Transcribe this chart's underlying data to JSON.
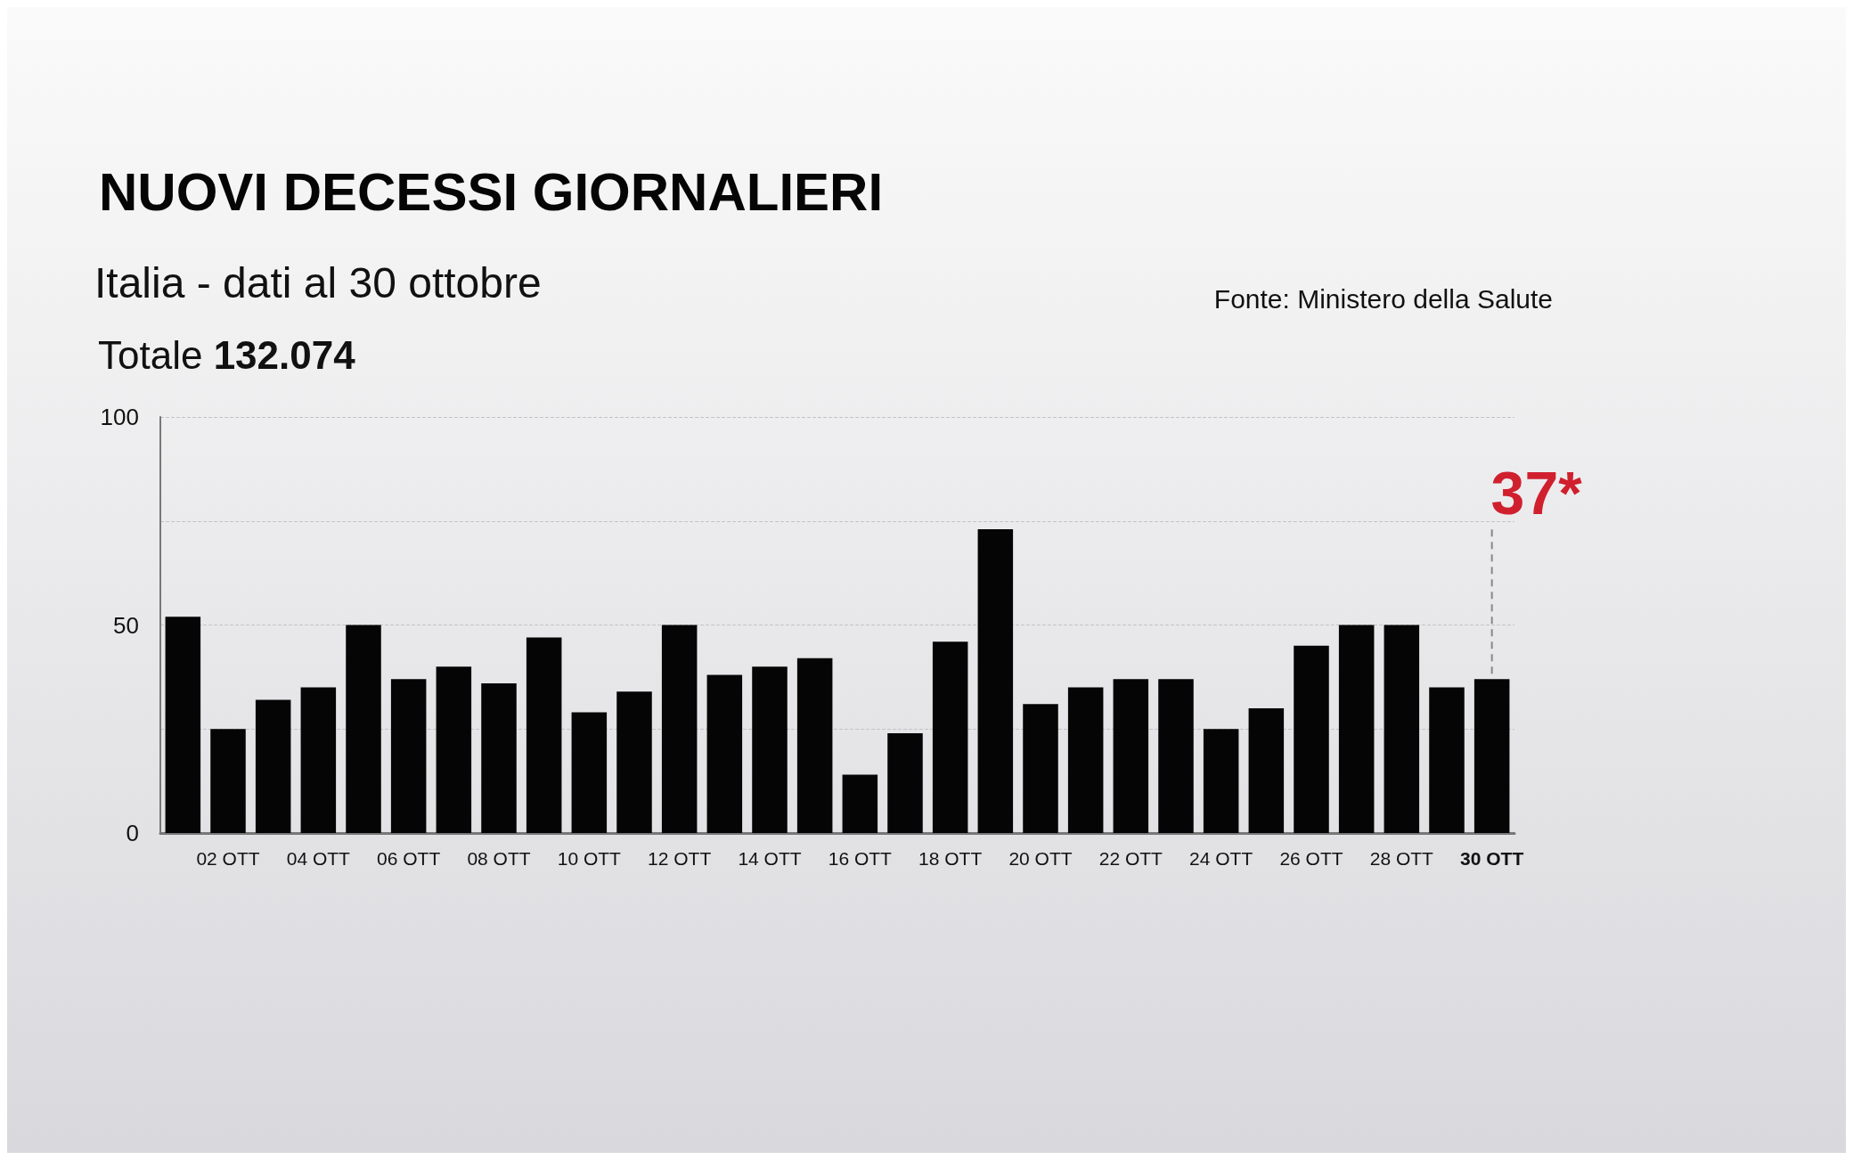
{
  "chart_data": {
    "type": "bar",
    "title": "NUOVI DECESSI GIORNALIERI",
    "subtitle": "Italia - dati al 30 ottobre",
    "categories": [
      null,
      "02 OTT",
      null,
      "04 OTT",
      null,
      "06 OTT",
      null,
      "08 OTT",
      null,
      "10 OTT",
      null,
      "12 OTT",
      null,
      "14 OTT",
      null,
      "16 OTT",
      null,
      "18 OTT",
      null,
      "20 OTT",
      null,
      "22 OTT",
      null,
      "24 OTT",
      null,
      "26 OTT",
      null,
      "28 OTT",
      null,
      "30 OTT"
    ],
    "values": [
      52,
      25,
      32,
      35,
      50,
      37,
      40,
      36,
      47,
      29,
      34,
      50,
      38,
      40,
      42,
      14,
      24,
      46,
      73,
      31,
      35,
      37,
      37,
      25,
      30,
      45,
      50,
      50,
      35,
      37
    ],
    "color": "#050505",
    "ylim": [
      0,
      100
    ],
    "yticks": [
      0,
      {
        "value": 25,
        "label": null
      },
      50,
      {
        "value": 75,
        "label": null
      },
      100
    ],
    "grid": "y",
    "annotations": [
      "Totale 132.074",
      "Fonte: Ministero della Salute",
      {
        "text": "37*",
        "x": "30 OTT",
        "y": 37
      }
    ]
  }
}
